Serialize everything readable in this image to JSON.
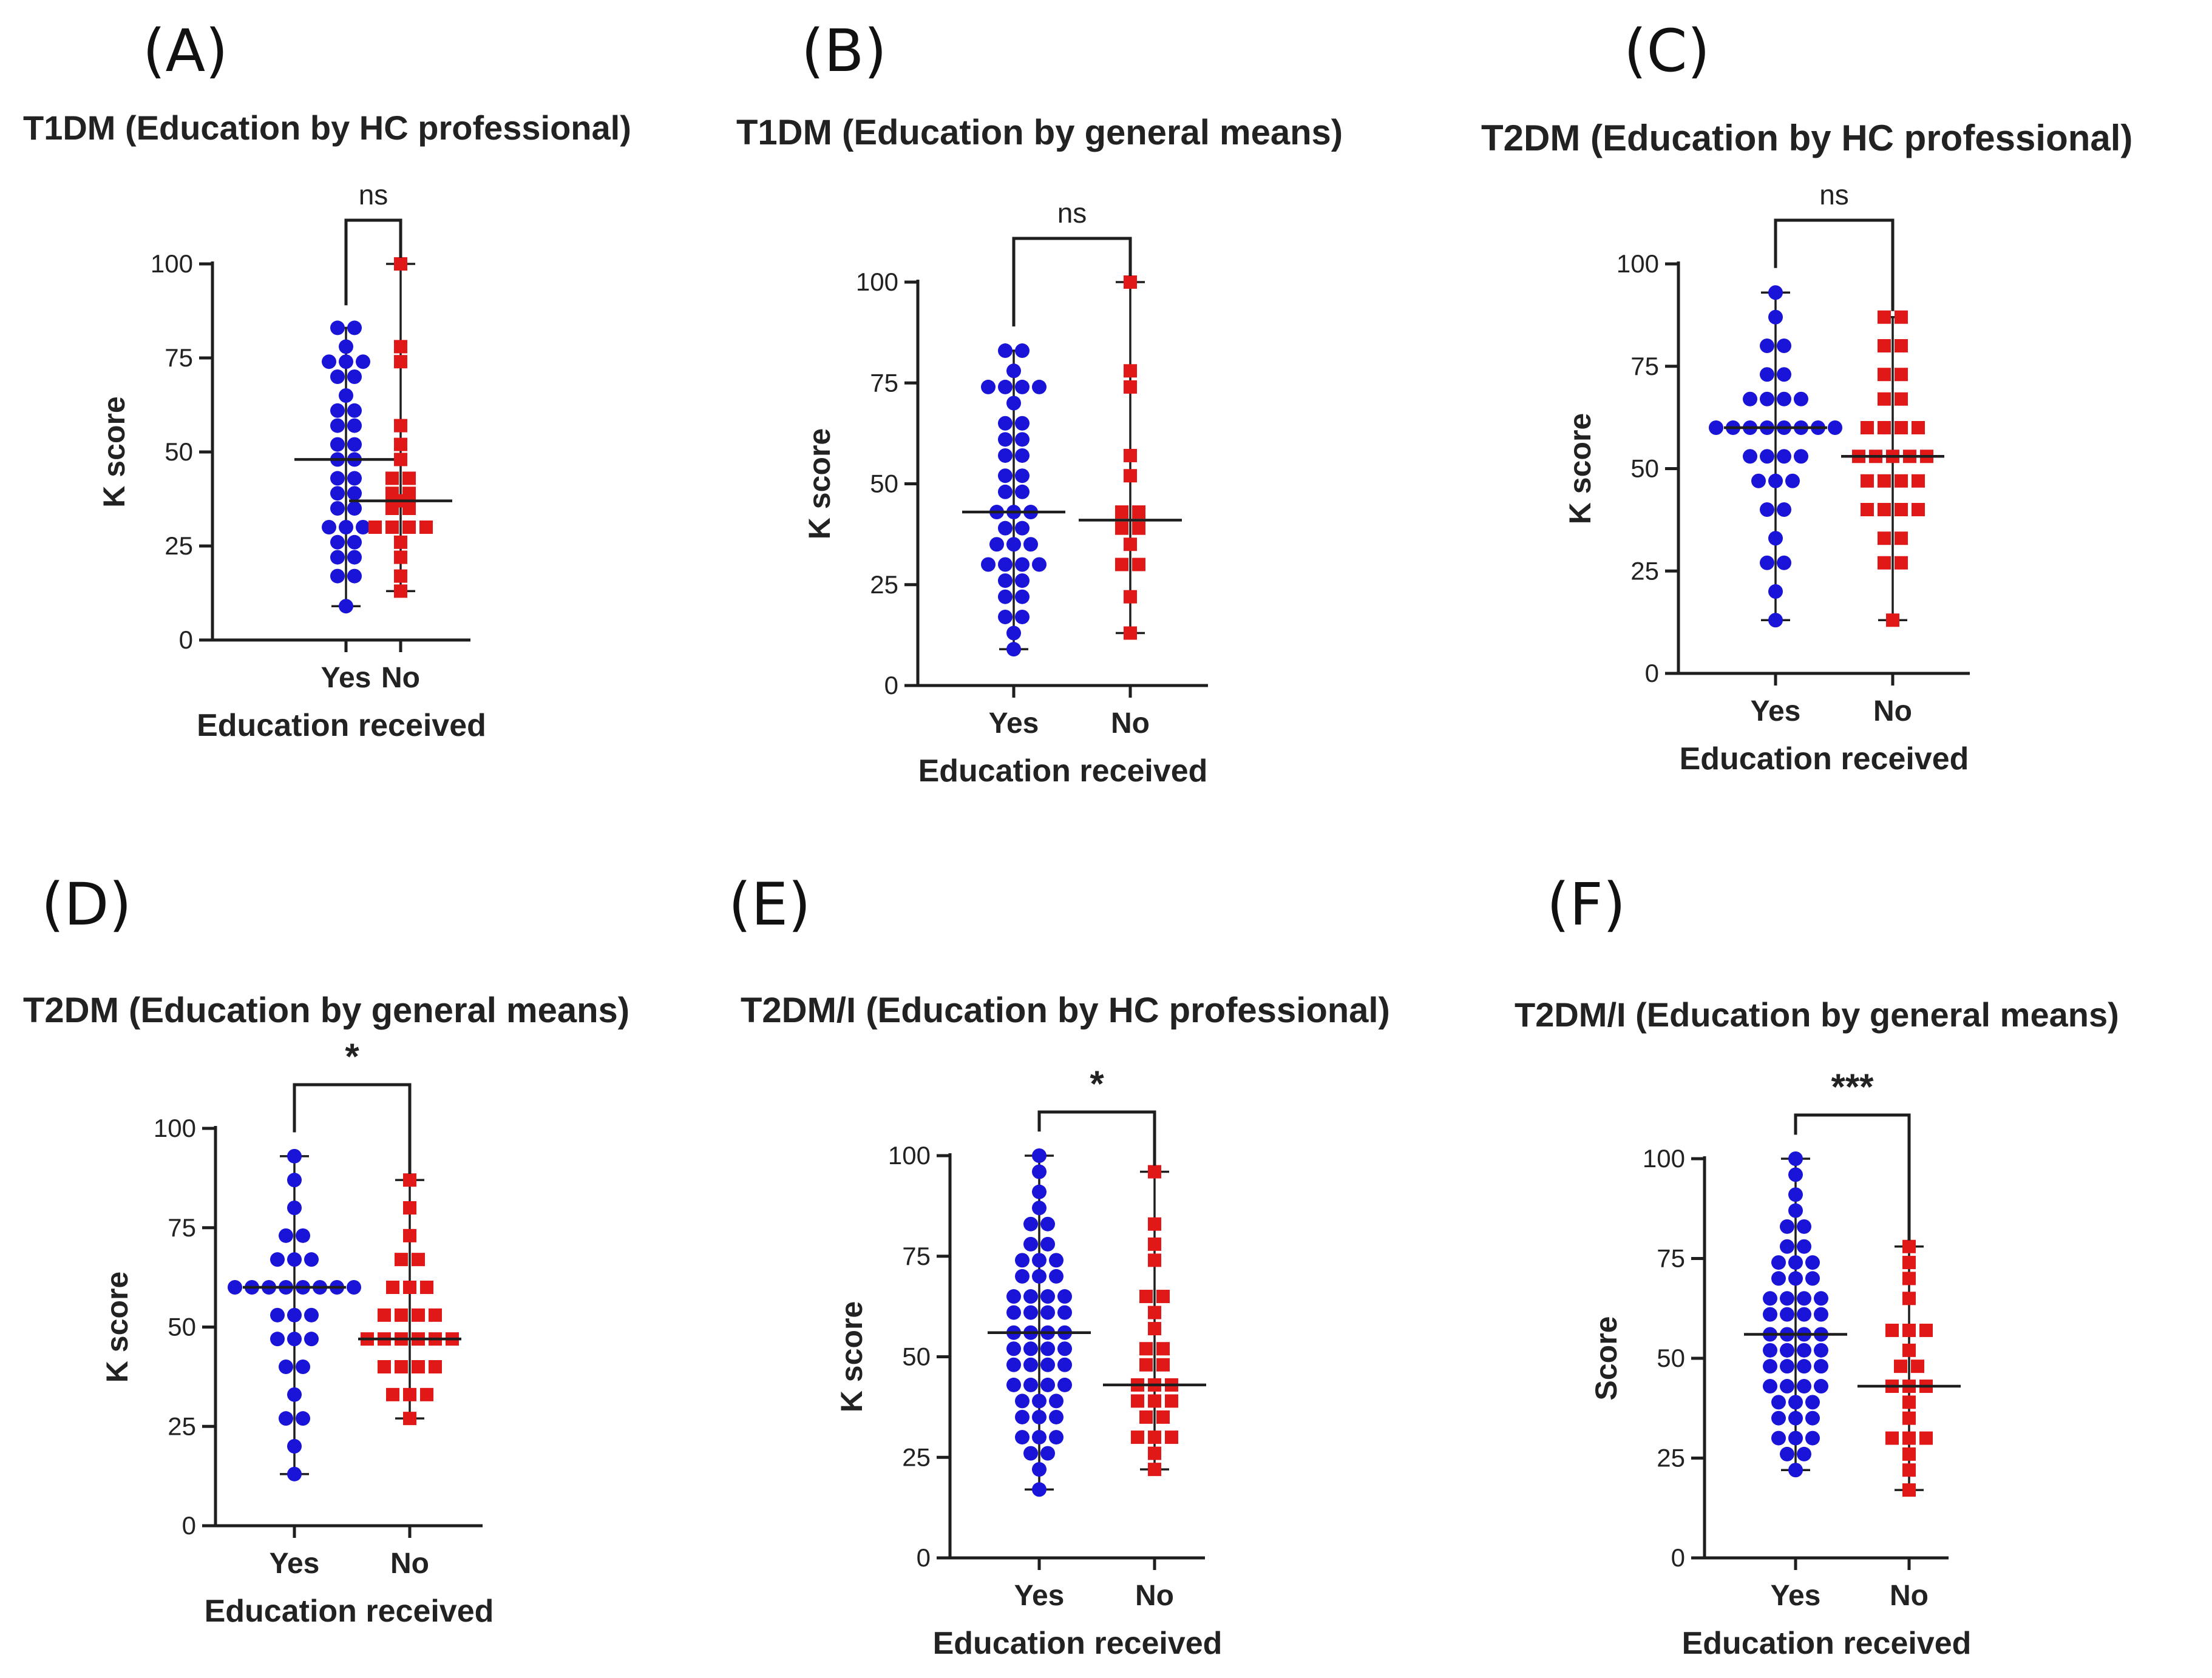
{
  "colors": {
    "yes": "#1a13d8",
    "no": "#e01818",
    "axis": "#1e1e1e",
    "text": "#222222"
  },
  "chart_data": [
    {
      "type": "scatter",
      "panel_label": "(A)",
      "title": "T1DM (Education by HC professional)",
      "xlabel": "Education received",
      "ylabel": "K score",
      "ylim": [
        0,
        100
      ],
      "yticks": [
        "0",
        "25",
        "50",
        "75",
        "100"
      ],
      "categories": [
        "Yes",
        "No"
      ],
      "significance": "ns",
      "series": [
        {
          "name": "Yes",
          "marker": "circle",
          "median": 48,
          "min": 9,
          "max": 83,
          "values": [
            9,
            17,
            17,
            22,
            22,
            26,
            26,
            30,
            30,
            30,
            35,
            35,
            39,
            39,
            43,
            43,
            48,
            48,
            52,
            52,
            57,
            57,
            61,
            61,
            65,
            70,
            70,
            74,
            74,
            74,
            78,
            83,
            83
          ]
        },
        {
          "name": "No",
          "marker": "square",
          "median": 37,
          "min": 13,
          "max": 100,
          "values": [
            13,
            17,
            22,
            26,
            30,
            30,
            30,
            30,
            35,
            35,
            37,
            39,
            39,
            43,
            43,
            48,
            52,
            57,
            74,
            78,
            100
          ]
        }
      ]
    },
    {
      "type": "scatter",
      "panel_label": "(B)",
      "title": "T1DM (Education by general means)",
      "xlabel": "Education received",
      "ylabel": "K score",
      "ylim": [
        0,
        100
      ],
      "yticks": [
        "0",
        "25",
        "50",
        "75",
        "100"
      ],
      "categories": [
        "Yes",
        "No"
      ],
      "significance": "ns",
      "series": [
        {
          "name": "Yes",
          "marker": "circle",
          "median": 43,
          "min": 9,
          "max": 83,
          "values": [
            9,
            13,
            17,
            17,
            22,
            22,
            26,
            26,
            30,
            30,
            30,
            30,
            35,
            35,
            35,
            39,
            39,
            43,
            43,
            43,
            48,
            48,
            52,
            52,
            57,
            57,
            61,
            61,
            65,
            65,
            70,
            74,
            74,
            74,
            74,
            78,
            83,
            83
          ]
        },
        {
          "name": "No",
          "marker": "square",
          "median": 41,
          "min": 13,
          "max": 100,
          "values": [
            13,
            22,
            30,
            30,
            35,
            39,
            39,
            43,
            43,
            52,
            57,
            74,
            78,
            100
          ]
        }
      ]
    },
    {
      "type": "scatter",
      "panel_label": "(C)",
      "title": "T2DM (Education by HC professional)",
      "xlabel": "Education received",
      "ylabel": "K score",
      "ylim": [
        0,
        100
      ],
      "yticks": [
        "0",
        "25",
        "50",
        "75",
        "100"
      ],
      "categories": [
        "Yes",
        "No"
      ],
      "significance": "ns",
      "series": [
        {
          "name": "Yes",
          "marker": "circle",
          "median": 60,
          "min": 13,
          "max": 93,
          "values": [
            13,
            20,
            27,
            27,
            33,
            40,
            40,
            47,
            47,
            47,
            53,
            53,
            53,
            53,
            60,
            60,
            60,
            60,
            60,
            60,
            60,
            60,
            67,
            67,
            67,
            67,
            73,
            73,
            80,
            80,
            87,
            93
          ]
        },
        {
          "name": "No",
          "marker": "square",
          "median": 53,
          "min": 13,
          "max": 87,
          "values": [
            13,
            27,
            27,
            33,
            33,
            40,
            40,
            40,
            40,
            47,
            47,
            47,
            47,
            53,
            53,
            53,
            53,
            53,
            60,
            60,
            60,
            60,
            67,
            67,
            73,
            73,
            80,
            80,
            87,
            87
          ]
        }
      ]
    },
    {
      "type": "scatter",
      "panel_label": "(D)",
      "title": "T2DM (Education by general means)",
      "xlabel": "Education received",
      "ylabel": "K score",
      "ylim": [
        0,
        100
      ],
      "yticks": [
        "0",
        "25",
        "50",
        "75",
        "100"
      ],
      "categories": [
        "Yes",
        "No"
      ],
      "significance": "*",
      "series": [
        {
          "name": "Yes",
          "marker": "circle",
          "median": 60,
          "min": 13,
          "max": 93,
          "values": [
            13,
            20,
            27,
            27,
            33,
            40,
            40,
            47,
            47,
            47,
            53,
            53,
            53,
            60,
            60,
            60,
            60,
            60,
            60,
            60,
            60,
            67,
            67,
            67,
            73,
            73,
            80,
            87,
            93
          ]
        },
        {
          "name": "No",
          "marker": "square",
          "median": 47,
          "min": 27,
          "max": 87,
          "values": [
            27,
            33,
            33,
            33,
            40,
            40,
            40,
            40,
            47,
            47,
            47,
            47,
            47,
            47,
            53,
            53,
            53,
            53,
            60,
            60,
            60,
            67,
            67,
            73,
            80,
            87
          ]
        }
      ]
    },
    {
      "type": "scatter",
      "panel_label": "(E)",
      "title": "T2DM/I (Education by HC professional)",
      "xlabel": "Education received",
      "ylabel": "K score",
      "ylim": [
        0,
        100
      ],
      "yticks": [
        "0",
        "25",
        "50",
        "75",
        "100"
      ],
      "categories": [
        "Yes",
        "No"
      ],
      "significance": "*",
      "series": [
        {
          "name": "Yes",
          "marker": "circle",
          "median": 56,
          "min": 17,
          "max": 100,
          "values": [
            17,
            22,
            26,
            26,
            30,
            30,
            30,
            35,
            35,
            35,
            39,
            39,
            39,
            43,
            43,
            43,
            43,
            48,
            48,
            48,
            48,
            52,
            52,
            52,
            52,
            56,
            56,
            56,
            56,
            61,
            61,
            61,
            61,
            65,
            65,
            65,
            65,
            70,
            70,
            70,
            74,
            74,
            74,
            78,
            78,
            83,
            83,
            87,
            91,
            96,
            100
          ]
        },
        {
          "name": "No",
          "marker": "square",
          "median": 43,
          "min": 22,
          "max": 96,
          "values": [
            22,
            26,
            30,
            30,
            30,
            35,
            35,
            39,
            39,
            39,
            43,
            43,
            43,
            48,
            48,
            52,
            52,
            57,
            61,
            65,
            65,
            74,
            78,
            83,
            96
          ]
        }
      ]
    },
    {
      "type": "scatter",
      "panel_label": "(F)",
      "title": "T2DM/I (Education by general means)",
      "xlabel": "Education received",
      "ylabel": "Score",
      "ylim": [
        0,
        100
      ],
      "yticks": [
        "0",
        "25",
        "50",
        "75",
        "100"
      ],
      "categories": [
        "Yes",
        "No"
      ],
      "significance": "***",
      "series": [
        {
          "name": "Yes",
          "marker": "circle",
          "median": 56,
          "min": 22,
          "max": 100,
          "values": [
            22,
            26,
            26,
            30,
            30,
            30,
            35,
            35,
            35,
            39,
            39,
            39,
            43,
            43,
            43,
            43,
            48,
            48,
            48,
            48,
            52,
            52,
            52,
            52,
            56,
            56,
            56,
            56,
            61,
            61,
            61,
            61,
            65,
            65,
            65,
            65,
            70,
            70,
            70,
            74,
            74,
            74,
            78,
            78,
            83,
            83,
            87,
            91,
            96,
            100
          ]
        },
        {
          "name": "No",
          "marker": "square",
          "median": 43,
          "min": 17,
          "max": 78,
          "values": [
            17,
            22,
            26,
            30,
            30,
            30,
            35,
            39,
            43,
            43,
            43,
            48,
            48,
            52,
            57,
            57,
            57,
            65,
            70,
            74,
            78
          ]
        }
      ]
    }
  ]
}
